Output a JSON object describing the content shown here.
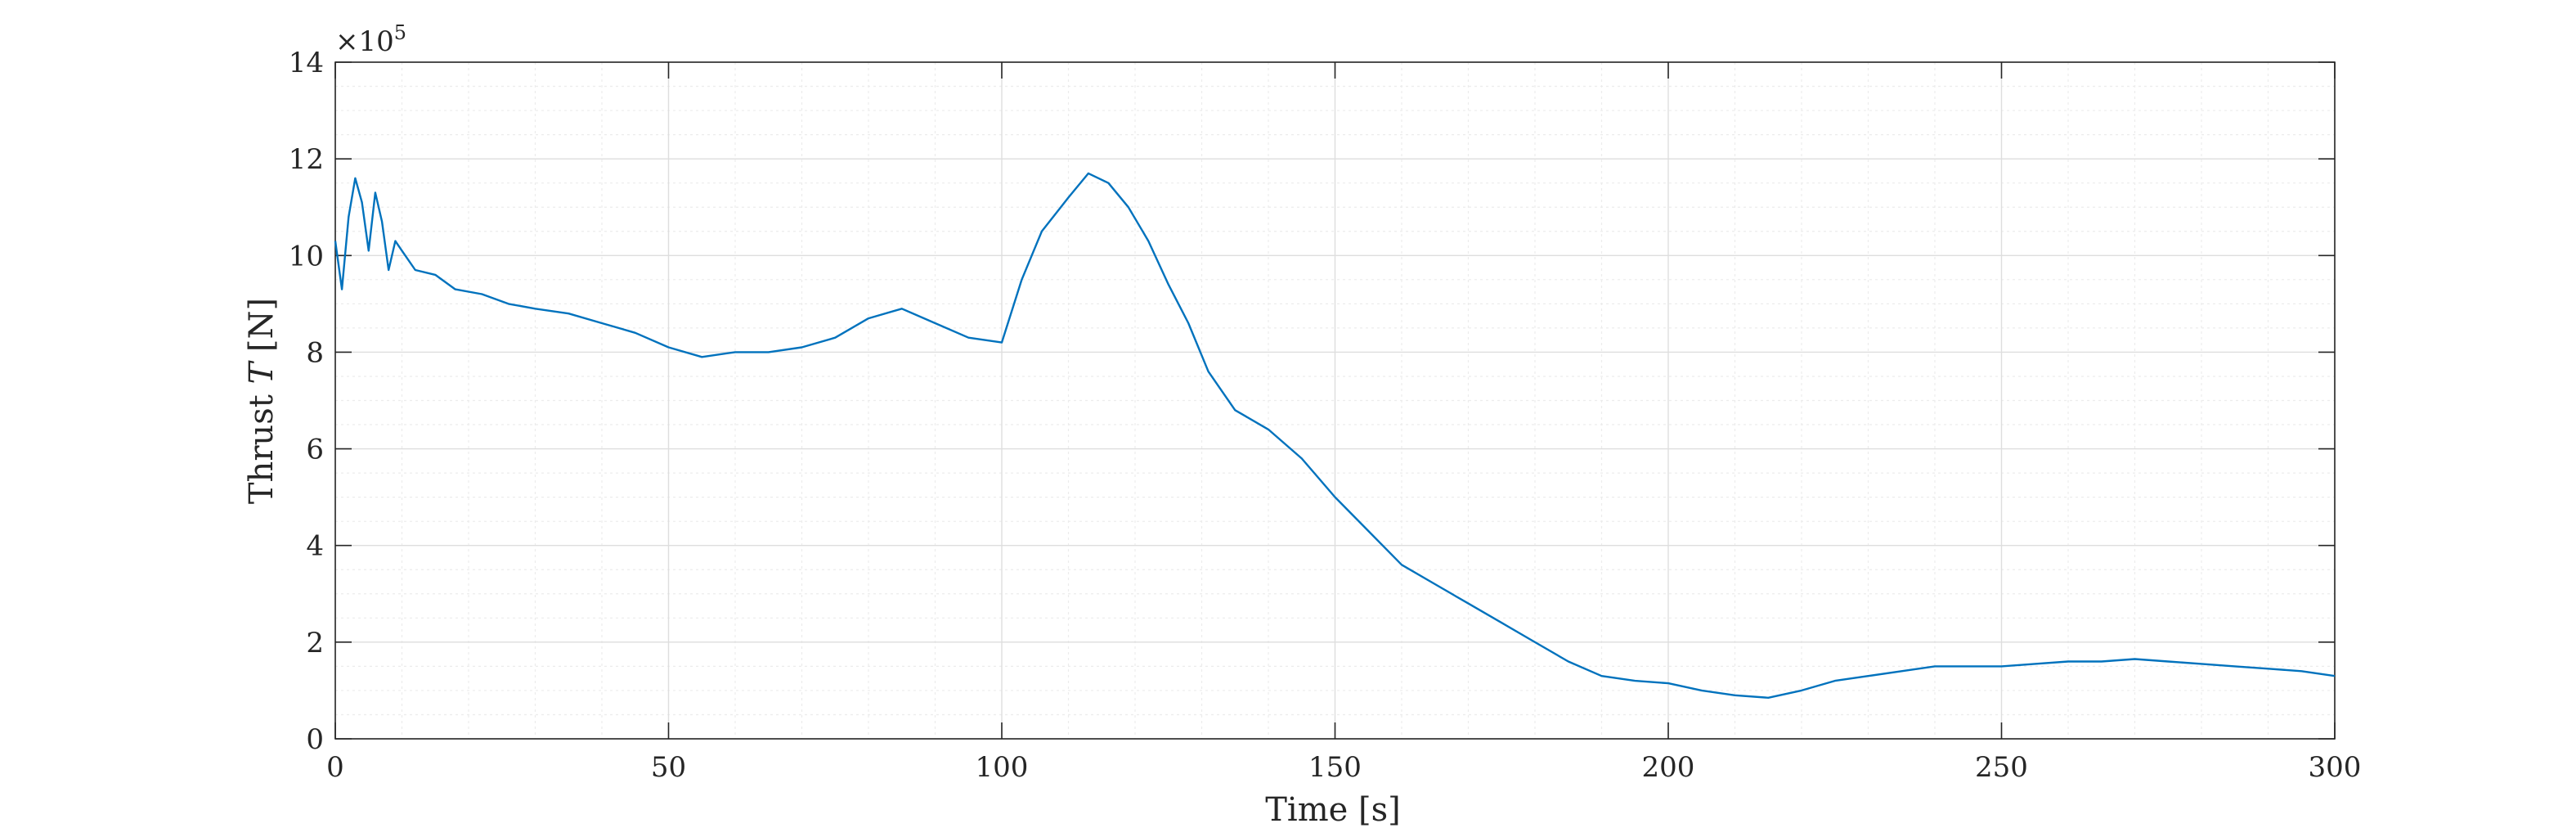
{
  "chart_data": {
    "type": "line",
    "xlabel": "Time [s]",
    "ylabel_prefix": "Thrust ",
    "ylabel_symbol": "T",
    "ylabel_suffix": " [N]",
    "y_exponent": "×10",
    "y_exponent_power": "5",
    "xlim": [
      0,
      300
    ],
    "ylim": [
      0,
      14
    ],
    "xticks": [
      0,
      50,
      100,
      150,
      200,
      250,
      300
    ],
    "xtick_labels": [
      "0",
      "50",
      "100",
      "150",
      "200",
      "250",
      "300"
    ],
    "yticks": [
      0,
      2,
      4,
      6,
      8,
      10,
      12,
      14
    ],
    "ytick_labels": [
      "0",
      "2",
      "4",
      "6",
      "8",
      "10",
      "12",
      "14"
    ],
    "y_multiplier": 100000,
    "grid": true,
    "minor_grid": true,
    "line_color": "#0072BD",
    "series": [
      {
        "x": [
          0,
          1,
          2,
          3,
          4,
          5,
          6,
          7,
          8,
          9,
          10,
          12,
          15,
          18,
          22,
          26,
          30,
          35,
          40,
          45,
          50,
          55,
          60,
          65,
          70,
          75,
          80,
          85,
          90,
          95,
          100,
          103,
          106,
          110,
          113,
          116,
          119,
          122,
          125,
          128,
          131,
          135,
          140,
          145,
          150,
          155,
          160,
          165,
          170,
          175,
          180,
          185,
          190,
          195,
          200,
          205,
          210,
          215,
          220,
          225,
          230,
          235,
          240,
          245,
          250,
          255,
          260,
          265,
          270,
          275,
          280,
          285,
          290,
          295,
          300
        ],
        "y": [
          10.3,
          9.3,
          10.8,
          11.6,
          11.1,
          10.1,
          11.3,
          10.7,
          9.7,
          10.3,
          10.1,
          9.7,
          9.6,
          9.3,
          9.2,
          9.0,
          8.9,
          8.8,
          8.6,
          8.4,
          8.1,
          7.9,
          8.0,
          8.0,
          8.1,
          8.3,
          8.7,
          8.9,
          8.6,
          8.3,
          8.2,
          9.5,
          10.5,
          11.2,
          11.7,
          11.5,
          11.0,
          10.3,
          9.4,
          8.6,
          7.6,
          6.8,
          6.4,
          5.8,
          5.0,
          4.3,
          3.6,
          3.2,
          2.8,
          2.4,
          2.0,
          1.6,
          1.3,
          1.2,
          1.15,
          1.0,
          0.9,
          0.85,
          1.0,
          1.2,
          1.3,
          1.4,
          1.5,
          1.5,
          1.5,
          1.55,
          1.6,
          1.6,
          1.65,
          1.6,
          1.55,
          1.5,
          1.45,
          1.4,
          1.3
        ]
      }
    ]
  }
}
